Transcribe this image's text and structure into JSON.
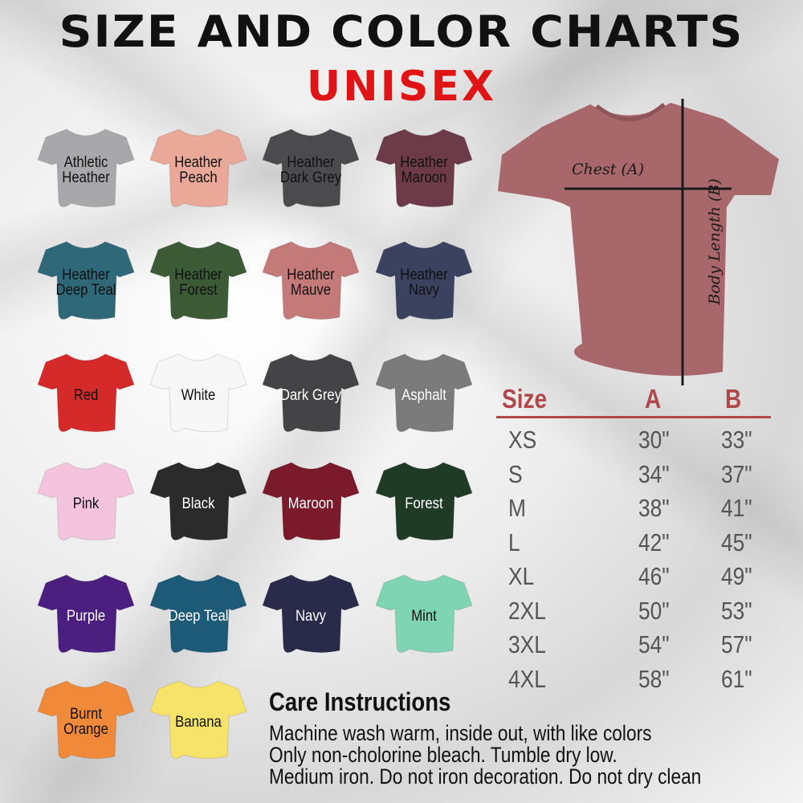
{
  "title": "SIZE AND COLOR CHARTS",
  "subtitle": "UNISEX",
  "colors": [
    {
      "name": "Athletic Heather",
      "fill": "#a8a8aa",
      "text": "#111111"
    },
    {
      "name": "Heather Peach",
      "fill": "#e9a898",
      "text": "#111111"
    },
    {
      "name": "Heather Dark Grey",
      "fill": "#4b4b4e",
      "text": "#111111"
    },
    {
      "name": "Heather Maroon",
      "fill": "#6c3a48",
      "text": "#111111"
    },
    {
      "name": "Heather Deep Teal",
      "fill": "#2f6878",
      "text": "#111111"
    },
    {
      "name": "Heather Forest",
      "fill": "#3d5a36",
      "text": "#111111"
    },
    {
      "name": "Heather Mauve",
      "fill": "#c57a7a",
      "text": "#111111"
    },
    {
      "name": "Heather Navy",
      "fill": "#3a425f",
      "text": "#111111"
    },
    {
      "name": "Red",
      "fill": "#d42a2a",
      "text": "#111111"
    },
    {
      "name": "White",
      "fill": "#f7f7f7",
      "text": "#111111"
    },
    {
      "name": "Dark Grey",
      "fill": "#444447",
      "text": "#ffffff"
    },
    {
      "name": "Asphalt",
      "fill": "#7b7b7c",
      "text": "#ffffff"
    },
    {
      "name": "Pink",
      "fill": "#f4c3dc",
      "text": "#111111"
    },
    {
      "name": "Black",
      "fill": "#2b2b2b",
      "text": "#ffffff"
    },
    {
      "name": "Maroon",
      "fill": "#7a1a2b",
      "text": "#ffffff"
    },
    {
      "name": "Forest",
      "fill": "#1f3b26",
      "text": "#ffffff"
    },
    {
      "name": "Purple",
      "fill": "#4b1f80",
      "text": "#ffffff"
    },
    {
      "name": "Deep Teal",
      "fill": "#1d5a78",
      "text": "#ffffff"
    },
    {
      "name": "Navy",
      "fill": "#2a2a4b",
      "text": "#ffffff"
    },
    {
      "name": "Mint",
      "fill": "#7fd4b3",
      "text": "#111111"
    },
    {
      "name": "Burnt Orange",
      "fill": "#f08a3a",
      "text": "#111111"
    },
    {
      "name": "Banana",
      "fill": "#f8e36a",
      "text": "#111111"
    }
  ],
  "diagram": {
    "chest_label": "Chest (A)",
    "body_length_label": "Body Length (B)",
    "shirt_color": "#a8676b"
  },
  "size_table": {
    "headers": [
      "Size",
      "A",
      "B"
    ],
    "header_color": "#b04848",
    "rows": [
      [
        "XS",
        "30\"",
        "33\""
      ],
      [
        "S",
        "34\"",
        "37\""
      ],
      [
        "M",
        "38\"",
        "41\""
      ],
      [
        "L",
        "42\"",
        "45\""
      ],
      [
        "XL",
        "46\"",
        "49\""
      ],
      [
        "2XL",
        "50\"",
        "53\""
      ],
      [
        "3XL",
        "54\"",
        "57\""
      ],
      [
        "4XL",
        "58\"",
        "61\""
      ]
    ]
  },
  "care": {
    "heading": "Care Instructions",
    "lines": [
      "Machine wash warm, inside out, with like colors",
      "Only non-cholorine bleach. Tumble dry low.",
      "Medium iron. Do not iron decoration. Do not dry clean"
    ]
  }
}
